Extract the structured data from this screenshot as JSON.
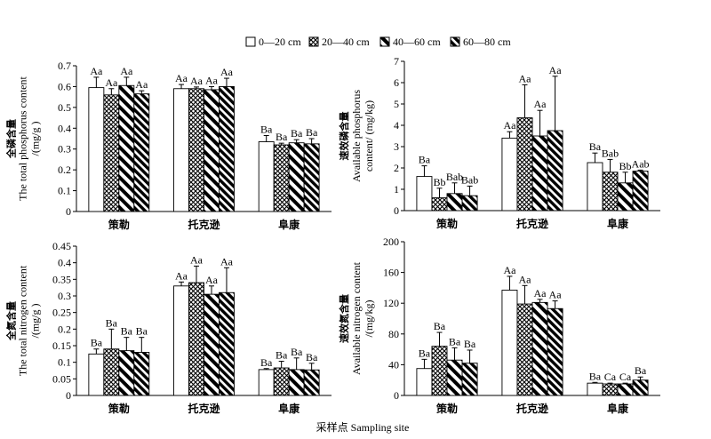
{
  "legend": {
    "position": "top",
    "entries": [
      "0—20 cm",
      "20—40 cm",
      "40—60 cm",
      "60—80 cm"
    ]
  },
  "figure": {
    "xlabel": "采样点 Sampling site"
  },
  "colors": {
    "bar_outline": "#000000",
    "background": "#ffffff"
  },
  "chart_data": [
    {
      "type": "bar",
      "ylabel": [
        "全磷含量",
        "The total phosphorus content",
        "/(mg/g )"
      ],
      "ylim": [
        0,
        0.7
      ],
      "yticks": [
        0,
        0.1,
        0.2,
        0.3,
        0.4,
        0.5,
        0.6,
        0.7
      ],
      "grid": false,
      "categories": [
        "策勒",
        "托克逊",
        "阜康"
      ],
      "series": [
        {
          "values": [
            0.595,
            0.59,
            0.335
          ],
          "errors": [
            0.05,
            0.02,
            0.03
          ],
          "labels": [
            "Aa",
            "Aa",
            "Ba"
          ]
        },
        {
          "values": [
            0.56,
            0.59,
            0.32
          ],
          "errors": [
            0.03,
            0.008,
            0.008
          ],
          "labels": [
            "Aa",
            "Aa",
            "Ba"
          ]
        },
        {
          "values": [
            0.605,
            0.585,
            0.33
          ],
          "errors": [
            0.04,
            0.015,
            0.015
          ],
          "labels": [
            "Aa",
            "Aa",
            "Ba"
          ]
        },
        {
          "values": [
            0.565,
            0.6,
            0.325
          ],
          "errors": [
            0.015,
            0.04,
            0.025
          ],
          "labels": [
            "Aa",
            "Aa",
            "Ba"
          ]
        }
      ]
    },
    {
      "type": "bar",
      "ylabel": [
        "速效磷含量",
        "Available phosphorus",
        "content/ (mg/kg)"
      ],
      "ylim": [
        0,
        7
      ],
      "yticks": [
        0,
        1,
        2,
        3,
        4,
        5,
        6,
        7
      ],
      "grid": false,
      "categories": [
        "策勒",
        "托克逊",
        "阜康"
      ],
      "series": [
        {
          "values": [
            1.6,
            3.4,
            2.25
          ],
          "errors": [
            0.5,
            0.3,
            0.45
          ],
          "labels": [
            "Ba",
            "Aa",
            "Ba"
          ]
        },
        {
          "values": [
            0.6,
            4.35,
            1.8
          ],
          "errors": [
            0.45,
            1.55,
            0.6
          ],
          "labels": [
            "Bb",
            "Aa",
            "Bab"
          ]
        },
        {
          "values": [
            0.8,
            3.5,
            1.3
          ],
          "errors": [
            0.5,
            1.2,
            0.5
          ],
          "labels": [
            "Bab",
            "Aa",
            "Bb"
          ]
        },
        {
          "values": [
            0.7,
            3.75,
            1.85
          ],
          "errors": [
            0.45,
            2.55,
            0.05
          ],
          "labels": [
            "Bab",
            "Aa",
            "Aab"
          ]
        }
      ]
    },
    {
      "type": "bar",
      "ylabel": [
        "全氮含量",
        "The total nitrogen content",
        "/(mg/g )"
      ],
      "ylim": [
        0,
        0.45
      ],
      "yticks": [
        0,
        0.05,
        0.1,
        0.15,
        0.2,
        0.25,
        0.3,
        0.35,
        0.4,
        0.45
      ],
      "grid": false,
      "categories": [
        "策勒",
        "托克逊",
        "阜康"
      ],
      "series": [
        {
          "values": [
            0.125,
            0.33,
            0.078
          ],
          "errors": [
            0.015,
            0.012,
            0.003
          ],
          "labels": [
            "Ba",
            "Aa",
            "Ba"
          ]
        },
        {
          "values": [
            0.14,
            0.34,
            0.083
          ],
          "errors": [
            0.06,
            0.05,
            0.02
          ],
          "labels": [
            "Ba",
            "Aa",
            "Ba"
          ]
        },
        {
          "values": [
            0.135,
            0.305,
            0.078
          ],
          "errors": [
            0.04,
            0.025,
            0.035
          ],
          "labels": [
            "Ba",
            "Aa",
            "Ba"
          ]
        },
        {
          "values": [
            0.13,
            0.31,
            0.077
          ],
          "errors": [
            0.045,
            0.075,
            0.02
          ],
          "labels": [
            "Ba",
            "Aa",
            "Ba"
          ]
        }
      ]
    },
    {
      "type": "bar",
      "ylabel": [
        "速效氮含量",
        "Available nitrogen content",
        "/(mg/kg)"
      ],
      "ylim": [
        0,
        200
      ],
      "yticks": [
        0,
        40,
        80,
        120,
        160,
        200
      ],
      "grid": false,
      "categories": [
        "策勒",
        "托克逊",
        "阜康"
      ],
      "series": [
        {
          "values": [
            35,
            137,
            16
          ],
          "errors": [
            12,
            18,
            1
          ],
          "labels": [
            "Ba",
            "Aa",
            "Ba"
          ]
        },
        {
          "values": [
            64,
            119,
            15
          ],
          "errors": [
            18,
            24,
            1
          ],
          "labels": [
            "Ba",
            "Aa",
            "Ca"
          ]
        },
        {
          "values": [
            46,
            121,
            15
          ],
          "errors": [
            16,
            4,
            1
          ],
          "labels": [
            "Ba",
            "Aa",
            "Ca"
          ]
        },
        {
          "values": [
            42,
            113,
            20
          ],
          "errors": [
            17,
            10,
            4
          ],
          "labels": [
            "Ba",
            "Aa",
            "Ba"
          ]
        }
      ]
    }
  ]
}
